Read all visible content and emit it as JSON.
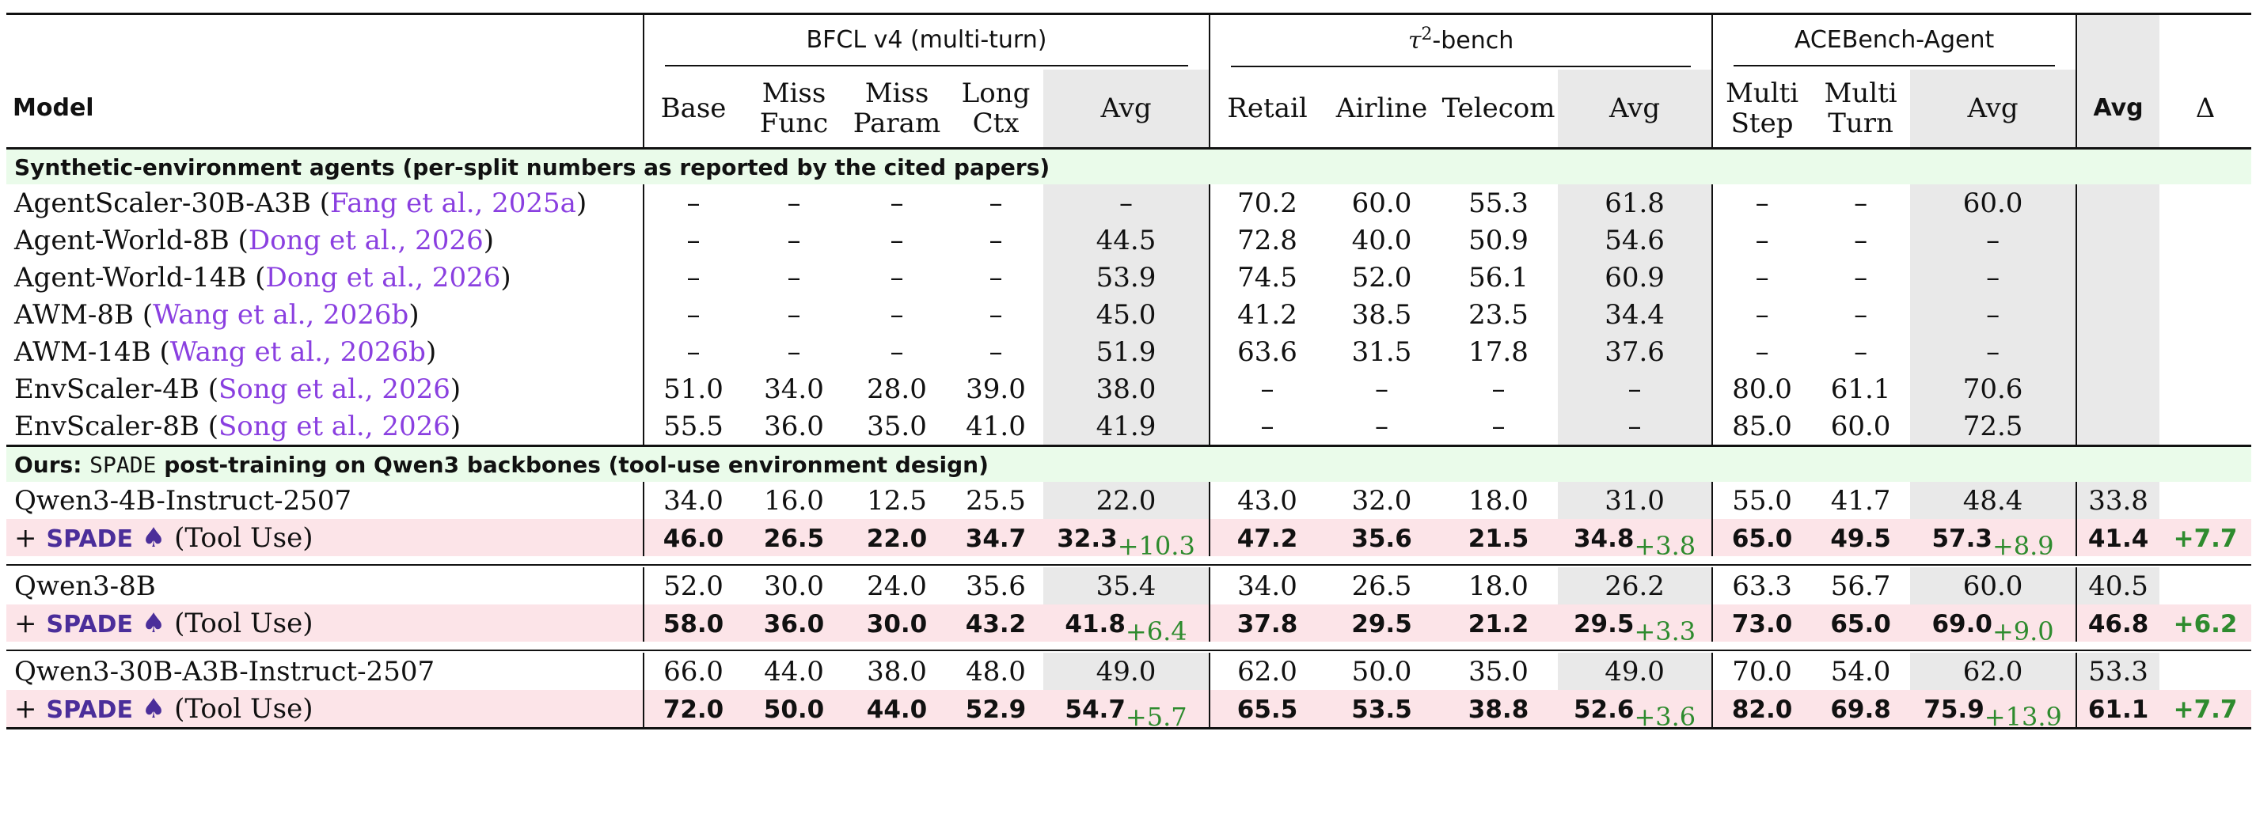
{
  "header": {
    "model_label": "Model",
    "groups": {
      "bfcl": "BFCL v4 (multi-turn)",
      "tau_sup": "2",
      "tau_rest": "-bench",
      "ace": "ACEBench-Agent"
    },
    "bfcl_cols": [
      "Base",
      "Miss",
      "Func",
      "Miss",
      "Param",
      "Long",
      "Ctx",
      "Avg"
    ],
    "tau_cols": [
      "Retail",
      "Airline",
      "Telecom",
      "Avg"
    ],
    "ace_cols": [
      "Multi",
      "Step",
      "Multi",
      "Turn",
      "Avg"
    ],
    "overall_avg": "Avg",
    "delta": "Δ"
  },
  "sections": {
    "synthetic": "Synthetic-environment agents (per-split numbers as reported by the cited papers)",
    "ours_prefix": "Ours: ",
    "ours_mono": "SPADE",
    "ours_suffix": " post-training on Qwen3 backbones (tool-use environment design)"
  },
  "synthetic_rows": [
    {
      "name": "AgentScaler-30B-A3B (",
      "cite": "Fang et al., 2025a",
      "close": ")",
      "cells": [
        "–",
        "–",
        "–",
        "–",
        "–",
        "70.2",
        "60.0",
        "55.3",
        "61.8",
        "–",
        "–",
        "60.0"
      ]
    },
    {
      "name": "Agent-World-8B (",
      "cite": "Dong et al., 2026",
      "close": ")",
      "cells": [
        "–",
        "–",
        "–",
        "–",
        "44.5",
        "72.8",
        "40.0",
        "50.9",
        "54.6",
        "–",
        "–",
        "–"
      ]
    },
    {
      "name": "Agent-World-14B (",
      "cite": "Dong et al., 2026",
      "close": ")",
      "cells": [
        "–",
        "–",
        "–",
        "–",
        "53.9",
        "74.5",
        "52.0",
        "56.1",
        "60.9",
        "–",
        "–",
        "–"
      ]
    },
    {
      "name": "AWM-8B (",
      "cite": "Wang et al., 2026b",
      "close": ")",
      "cells": [
        "–",
        "–",
        "–",
        "–",
        "45.0",
        "41.2",
        "38.5",
        "23.5",
        "34.4",
        "–",
        "–",
        "–"
      ]
    },
    {
      "name": "AWM-14B (",
      "cite": "Wang et al., 2026b",
      "close": ")",
      "cells": [
        "–",
        "–",
        "–",
        "–",
        "51.9",
        "63.6",
        "31.5",
        "17.8",
        "37.6",
        "–",
        "–",
        "–"
      ]
    },
    {
      "name": "EnvScaler-4B (",
      "cite": "Song et al., 2026",
      "close": ")",
      "cells": [
        "51.0",
        "34.0",
        "28.0",
        "39.0",
        "38.0",
        "–",
        "–",
        "–",
        "–",
        "80.0",
        "61.1",
        "70.6"
      ]
    },
    {
      "name": "EnvScaler-8B (",
      "cite": "Song et al., 2026",
      "close": ")",
      "cells": [
        "55.5",
        "36.0",
        "35.0",
        "41.0",
        "41.9",
        "–",
        "–",
        "–",
        "–",
        "85.0",
        "60.0",
        "72.5"
      ]
    }
  ],
  "ours": [
    {
      "base": {
        "name": "Qwen3-4B-Instruct-2507",
        "cells": [
          "34.0",
          "16.0",
          "12.5",
          "25.5",
          "22.0",
          "43.0",
          "32.0",
          "18.0",
          "31.0",
          "55.0",
          "41.7",
          "48.4",
          "33.8"
        ]
      },
      "spade": {
        "plus": "+",
        "label": "SPADE",
        "icon": "♠",
        "suffix": "(Tool Use)",
        "cells": [
          "46.0",
          "26.5",
          "22.0",
          "34.7",
          "32.3",
          "47.2",
          "35.6",
          "21.5",
          "34.8",
          "65.0",
          "49.5",
          "57.3",
          "41.4"
        ],
        "gains": {
          "bfcl": "+10.3",
          "tau": "+3.8",
          "ace": "+8.9"
        },
        "delta": "+7.7"
      }
    },
    {
      "base": {
        "name": "Qwen3-8B",
        "cells": [
          "52.0",
          "30.0",
          "24.0",
          "35.6",
          "35.4",
          "34.0",
          "26.5",
          "18.0",
          "26.2",
          "63.3",
          "56.7",
          "60.0",
          "40.5"
        ]
      },
      "spade": {
        "plus": "+",
        "label": "SPADE",
        "icon": "♠",
        "suffix": "(Tool Use)",
        "cells": [
          "58.0",
          "36.0",
          "30.0",
          "43.2",
          "41.8",
          "37.8",
          "29.5",
          "21.2",
          "29.5",
          "73.0",
          "65.0",
          "69.0",
          "46.8"
        ],
        "gains": {
          "bfcl": "+6.4",
          "tau": "+3.3",
          "ace": "+9.0"
        },
        "delta": "+6.2"
      }
    },
    {
      "base": {
        "name": "Qwen3-30B-A3B-Instruct-2507",
        "cells": [
          "66.0",
          "44.0",
          "38.0",
          "48.0",
          "49.0",
          "62.0",
          "50.0",
          "35.0",
          "49.0",
          "70.0",
          "54.0",
          "62.0",
          "53.3"
        ]
      },
      "spade": {
        "plus": "+",
        "label": "SPADE",
        "icon": "♠",
        "suffix": "(Tool Use)",
        "cells": [
          "72.0",
          "50.0",
          "44.0",
          "52.9",
          "54.7",
          "65.5",
          "53.5",
          "38.8",
          "52.6",
          "82.0",
          "69.8",
          "75.9",
          "61.1"
        ],
        "gains": {
          "bfcl": "+5.7",
          "tau": "+3.6",
          "ace": "+13.9"
        },
        "delta": "+7.7"
      }
    }
  ]
}
